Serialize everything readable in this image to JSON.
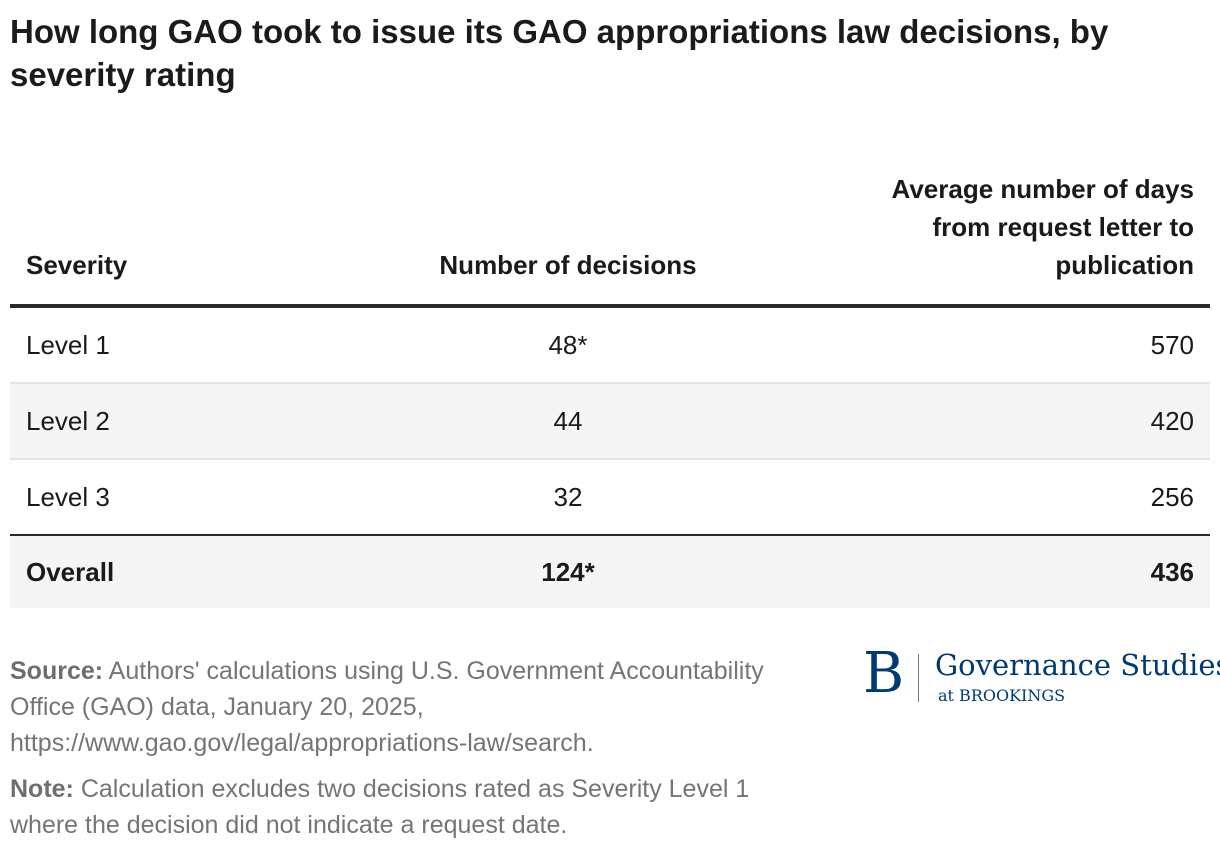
{
  "title": "How long GAO took to issue its GAO appropriations law decisions, by severity rating",
  "table": {
    "headers": {
      "severity": "Severity",
      "decisions": "Number of decisions",
      "days": "Average number of days from request letter to publication"
    },
    "rows": [
      {
        "severity": "Level 1",
        "decisions": "48*",
        "days": "570"
      },
      {
        "severity": "Level 2",
        "decisions": "44",
        "days": "420"
      },
      {
        "severity": "Level 3",
        "decisions": "32",
        "days": "256"
      }
    ],
    "total": {
      "severity": "Overall",
      "decisions": "124*",
      "days": "436"
    }
  },
  "source": {
    "label": "Source:",
    "text": "Authors' calculations using U.S. Government Accountability Office (GAO) data, January 20, 2025, https://www.gao.gov/legal/appropriations-law/search."
  },
  "note": {
    "label": "Note:",
    "text": "Calculation excludes two decisions rated as Severity Level 1 where the decision did not indicate a request date."
  },
  "logo": {
    "mark": "B",
    "name": "Governance Studies",
    "sub": "at BROOKINGS",
    "color": "#003a70"
  }
}
